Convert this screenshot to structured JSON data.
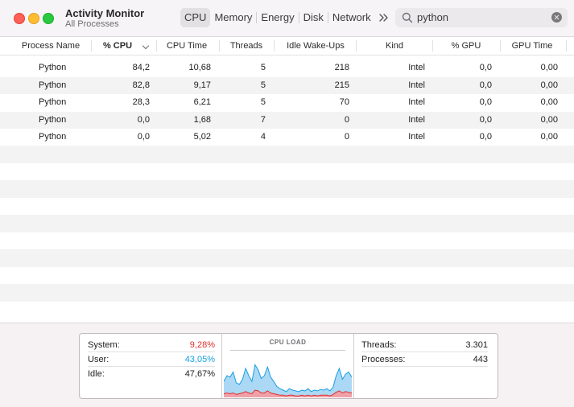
{
  "window": {
    "title": "Activity Monitor",
    "subtitle": "All Processes"
  },
  "tabs": [
    {
      "label": "CPU",
      "active": true
    },
    {
      "label": "Memory",
      "active": false
    },
    {
      "label": "Energy",
      "active": false
    },
    {
      "label": "Disk",
      "active": false
    },
    {
      "label": "Network",
      "active": false
    }
  ],
  "search": {
    "value": "python"
  },
  "table": {
    "columns": [
      "Process Name",
      "% CPU",
      "CPU Time",
      "Threads",
      "Idle Wake-Ups",
      "Kind",
      "% GPU",
      "GPU Time"
    ],
    "sorted_column": "% CPU",
    "rows": [
      {
        "name": "Python",
        "cpu": "84,2",
        "cpu_time": "10,68",
        "threads": "5",
        "wakeups": "218",
        "kind": "Intel",
        "gpu": "0,0",
        "gpu_time": "0,00"
      },
      {
        "name": "Python",
        "cpu": "82,8",
        "cpu_time": "9,17",
        "threads": "5",
        "wakeups": "215",
        "kind": "Intel",
        "gpu": "0,0",
        "gpu_time": "0,00"
      },
      {
        "name": "Python",
        "cpu": "28,3",
        "cpu_time": "6,21",
        "threads": "5",
        "wakeups": "70",
        "kind": "Intel",
        "gpu": "0,0",
        "gpu_time": "0,00"
      },
      {
        "name": "Python",
        "cpu": "0,0",
        "cpu_time": "1,68",
        "threads": "7",
        "wakeups": "0",
        "kind": "Intel",
        "gpu": "0,0",
        "gpu_time": "0,00"
      },
      {
        "name": "Python",
        "cpu": "0,0",
        "cpu_time": "5,02",
        "threads": "4",
        "wakeups": "0",
        "kind": "Intel",
        "gpu": "0,0",
        "gpu_time": "0,00"
      }
    ]
  },
  "summary": {
    "system_label": "System:",
    "system_value": "9,28%",
    "user_label": "User:",
    "user_value": "43,05%",
    "idle_label": "Idle:",
    "idle_value": "47,67%",
    "cpu_load_title": "CPU LOAD",
    "threads_label": "Threads:",
    "threads_value": "3.301",
    "processes_label": "Processes:",
    "processes_value": "443"
  },
  "colors": {
    "system": "#e0302a",
    "user": "#1aa0e0",
    "user_fill": "#aad8f5",
    "system_fill": "#f0a0a8"
  },
  "icons": {
    "more": "chevron-double-right-icon",
    "search": "search-icon",
    "clear": "clear-icon",
    "sort": "chevron-down-icon"
  },
  "cpu_load_graph": {
    "user_series": [
      22,
      30,
      28,
      35,
      20,
      18,
      25,
      40,
      30,
      22,
      45,
      38,
      26,
      30,
      42,
      28,
      22,
      15,
      12,
      10,
      8,
      12,
      10,
      9,
      8,
      10,
      9,
      12,
      8,
      10,
      9,
      11,
      10,
      12,
      9,
      14,
      30,
      40,
      25,
      32,
      35,
      28
    ],
    "system_series": [
      5,
      6,
      5,
      6,
      4,
      5,
      6,
      8,
      6,
      5,
      10,
      9,
      6,
      6,
      9,
      6,
      5,
      4,
      3,
      3,
      2,
      3,
      3,
      2,
      2,
      3,
      2,
      3,
      2,
      3,
      2,
      3,
      3,
      3,
      2,
      4,
      7,
      9,
      6,
      8,
      7,
      6
    ]
  }
}
